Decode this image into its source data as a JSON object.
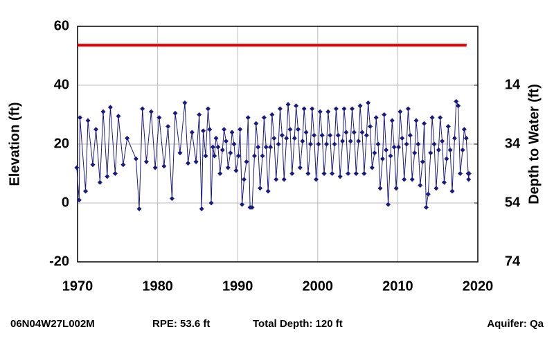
{
  "chart_data": {
    "type": "line",
    "ylabel": "Elevation (ft)",
    "y2label": "Depth to Water (ft)",
    "xlim": [
      1970,
      2020
    ],
    "xticks": [
      1970,
      1980,
      1990,
      2000,
      2010,
      2020
    ],
    "ylim": [
      -20,
      60
    ],
    "yticks": [
      -20,
      0,
      20,
      40,
      60
    ],
    "y2lim": [
      74,
      -6
    ],
    "y2ticks": [
      14,
      34,
      54,
      74
    ],
    "grid": true,
    "reference_line": {
      "value": 53.6,
      "color": "#e00000",
      "x": [
        1970,
        2018.6
      ]
    },
    "series": [
      {
        "color": "#1a1a80",
        "x": [
          1969.9,
          1970.2,
          1970.3,
          1971,
          1971.3,
          1971.9,
          1972.3,
          1972.8,
          1973.2,
          1973.7,
          1974.1,
          1974.7,
          1975.1,
          1975.7,
          1976.2,
          1977.3,
          1977.7,
          1978.1,
          1978.6,
          1979.2,
          1979.7,
          1980.2,
          1980.8,
          1981.3,
          1981.8,
          1982.2,
          1982.8,
          1983.4,
          1983.8,
          1984.3,
          1984.8,
          1985.2,
          1985.5,
          1985.7,
          1986,
          1986.3,
          1986.5,
          1986.7,
          1986.9,
          1987.1,
          1987.3,
          1987.55,
          1987.8,
          1988.1,
          1988.3,
          1988.55,
          1988.8,
          1989.1,
          1989.3,
          1989.55,
          1989.8,
          1990.1,
          1990.3,
          1990.55,
          1990.8,
          1991.1,
          1991.3,
          1991.55,
          1991.8,
          1992.1,
          1992.3,
          1992.55,
          1992.8,
          1993.1,
          1993.3,
          1993.55,
          1993.8,
          1994.1,
          1994.3,
          1994.55,
          1994.8,
          1995.1,
          1995.3,
          1995.55,
          1995.8,
          1996.1,
          1996.3,
          1996.55,
          1996.8,
          1997.1,
          1997.3,
          1997.55,
          1997.8,
          1998.1,
          1998.3,
          1998.55,
          1998.8,
          1999.1,
          1999.3,
          1999.55,
          1999.8,
          2000.1,
          2000.3,
          2000.55,
          2000.8,
          2001.1,
          2001.3,
          2001.55,
          2001.8,
          2002.1,
          2002.3,
          2002.55,
          2002.8,
          2003.1,
          2003.3,
          2003.55,
          2003.8,
          2004.1,
          2004.3,
          2004.55,
          2004.8,
          2005.1,
          2005.3,
          2005.55,
          2005.8,
          2006.1,
          2006.3,
          2006.55,
          2006.8,
          2007.1,
          2007.3,
          2007.55,
          2007.8,
          2008.1,
          2008.3,
          2008.55,
          2008.8,
          2009.1,
          2009.3,
          2009.55,
          2009.8,
          2010.1,
          2010.3,
          2010.55,
          2010.8,
          2011.1,
          2011.3,
          2011.55,
          2011.8,
          2012.1,
          2012.3,
          2012.55,
          2012.8,
          2013.1,
          2013.3,
          2013.55,
          2013.8,
          2014.1,
          2014.3,
          2014.55,
          2014.8,
          2015.1,
          2015.3,
          2015.55,
          2015.8,
          2016.1,
          2016.3,
          2016.55,
          2016.8,
          2017.1,
          2017.3,
          2017.55,
          2017.8,
          2018.1,
          2018.3,
          2018.55,
          2018.8,
          2018.85,
          2018.9
        ],
        "values": [
          12,
          1,
          29,
          4,
          28,
          13,
          25,
          7,
          31,
          9,
          32.5,
          10,
          29.5,
          13,
          22,
          15,
          -2,
          32,
          14,
          31,
          12,
          29,
          12.5,
          26,
          1.5,
          30.5,
          17,
          34,
          13.5,
          24,
          14,
          30,
          -2,
          24.5,
          16,
          32,
          25,
          0,
          19,
          16,
          22,
          19,
          10,
          18,
          25,
          21,
          12,
          17,
          24,
          20,
          11,
          16,
          25,
          -0.5,
          8,
          14,
          29,
          -1.5,
          -1.5,
          16,
          27,
          19,
          5,
          16,
          29,
          19,
          4,
          19,
          30,
          22,
          8,
          20,
          32,
          23,
          8,
          22,
          33.5,
          25,
          10,
          22,
          33,
          25,
          12,
          21,
          32,
          24,
          10,
          20,
          32,
          23,
          8,
          20,
          31,
          23,
          10,
          20,
          31,
          23,
          10,
          20,
          32,
          23,
          9,
          21,
          32,
          24,
          10,
          21,
          32,
          24,
          10,
          21,
          33,
          24,
          10,
          23,
          34,
          26,
          12,
          17,
          29,
          20,
          5,
          15,
          30,
          18,
          -0.5,
          16,
          28,
          19,
          5,
          19,
          31,
          22,
          8,
          20,
          32,
          23,
          8,
          17,
          28,
          20,
          6,
          14,
          27,
          -1.5,
          3,
          17,
          29,
          20,
          5,
          18,
          29,
          21,
          7,
          15,
          26,
          18,
          4,
          22,
          34.5,
          33,
          10,
          18,
          25,
          22,
          10,
          8,
          10
        ]
      }
    ]
  },
  "footer": {
    "well": "06N04W27L002M",
    "rpe": "RPE: 53.6 ft",
    "depth": "Total Depth: 120 ft",
    "aquifer": "Aquifer: Qa"
  }
}
